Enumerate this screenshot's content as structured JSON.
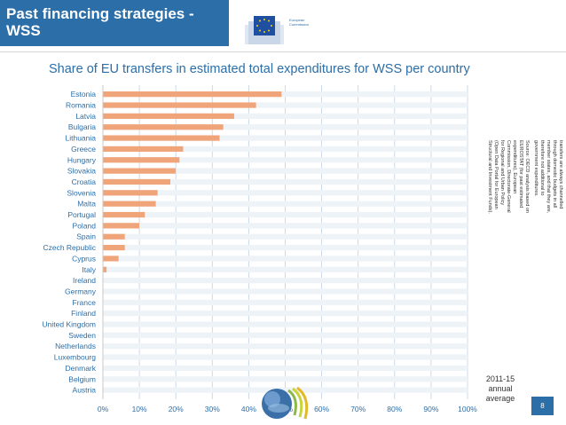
{
  "header": {
    "title_line1": "Past financing strategies -",
    "title_line2": "WSS",
    "logo_text_line1": "European",
    "logo_text_line2": "Commission"
  },
  "chart_data": {
    "type": "bar",
    "orientation": "horizontal",
    "title": "Share of EU transfers in estimated total expenditures for WSS per country",
    "categories": [
      "Estonia",
      "Romania",
      "Latvia",
      "Bulgaria",
      "Lithuania",
      "Greece",
      "Hungary",
      "Slovakia",
      "Croatia",
      "Slovenia",
      "Malta",
      "Portugal",
      "Poland",
      "Spain",
      "Czech Republic",
      "Cyprus",
      "Italy",
      "Ireland",
      "Germany",
      "France",
      "Finland",
      "United Kingdom",
      "Sweden",
      "Netherlands",
      "Luxembourg",
      "Denmark",
      "Belgium",
      "Austria"
    ],
    "series": [
      {
        "name": "2011-15 annual average",
        "values": [
          49,
          42,
          36,
          33,
          32,
          22,
          21,
          20,
          18.5,
          15,
          14.5,
          11.5,
          10,
          6,
          6,
          4.3,
          1,
          0,
          0,
          0,
          0,
          0,
          0,
          0,
          0,
          0,
          0,
          0
        ]
      }
    ],
    "xlim": [
      0,
      100
    ],
    "x_ticks": [
      "0%",
      "10%",
      "20%",
      "30%",
      "40%",
      "50%",
      "60%",
      "70%",
      "80%",
      "90%",
      "100%"
    ],
    "xlabel": "",
    "ylabel": "",
    "legend": "2011-15 annual average",
    "colors": {
      "bar": "#f0a479",
      "grid": "#bfd1e5",
      "title": "#2b6ea8",
      "accent": "#2b6ea8"
    }
  },
  "period_label": {
    "line1": "2011-15",
    "line2": "annual",
    "line3": "average"
  },
  "note": {
    "text1": "Note: It is assumed that EU transfers are always channelled through domestic budgets in all member states, and that they are, therefore not additional to government expenditures.",
    "text2": "Source: OECD analysis based on EUROSTAT (for past estimated expenditures), European Commission, Directorate-General for Regional and Urban Policy (Open Data Portal for European Structural and Investment Funds)."
  },
  "page_number": "8"
}
